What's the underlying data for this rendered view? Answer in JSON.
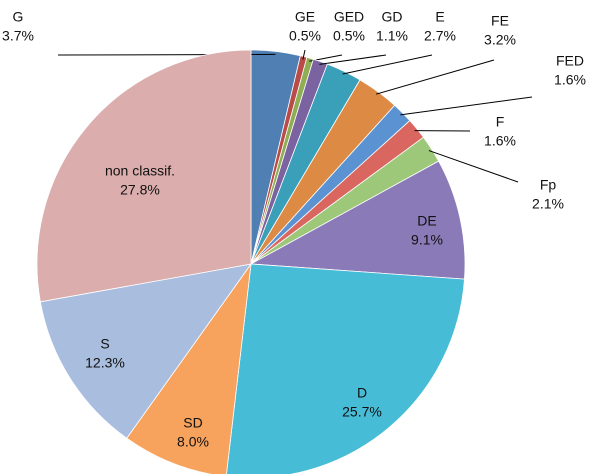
{
  "chart_data": {
    "type": "pie",
    "categories": [
      "G",
      "GE",
      "GED",
      "GD",
      "E",
      "FE",
      "FED",
      "F",
      "Fp",
      "DE",
      "D",
      "SD",
      "S",
      "non classif."
    ],
    "values": [
      3.7,
      0.5,
      0.5,
      1.1,
      2.7,
      3.2,
      1.6,
      1.6,
      2.1,
      9.1,
      25.7,
      8.0,
      12.3,
      27.8
    ],
    "value_labels": [
      "3.7%",
      "0.5%",
      "0.5%",
      "1.1%",
      "2.7%",
      "3.2%",
      "1.6%",
      "1.6%",
      "2.1%",
      "9.1%",
      "25.7%",
      "8.0%",
      "12.3%",
      "27.8%"
    ],
    "colors": [
      "#4f7fb3",
      "#b94b48",
      "#8fae54",
      "#7b62a0",
      "#3a9fb8",
      "#dd8a45",
      "#5b93d2",
      "#d9675f",
      "#9dc879",
      "#8a7ab8",
      "#47bcd6",
      "#f7a25d",
      "#a9bddf",
      "#dbadad"
    ]
  }
}
